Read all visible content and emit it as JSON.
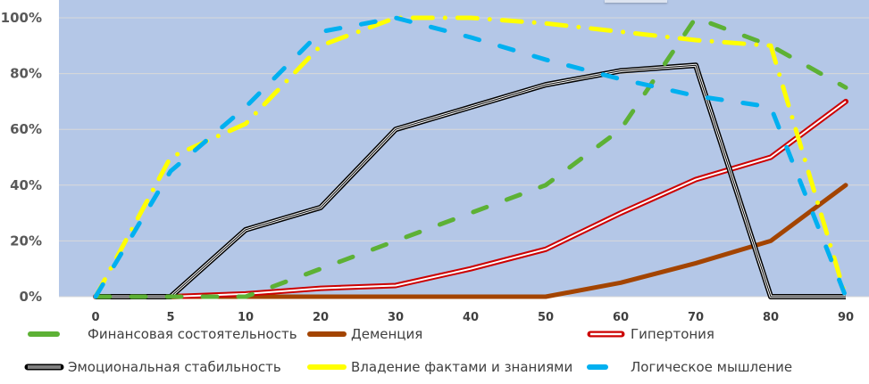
{
  "chart_data": {
    "type": "line",
    "title": "",
    "xlabel": "",
    "ylabel": "",
    "categories": [
      "0",
      "5",
      "10",
      "20",
      "30",
      "40",
      "50",
      "60",
      "70",
      "80",
      "90"
    ],
    "y_ticks": [
      "0%",
      "20%",
      "40%",
      "60%",
      "80%",
      "100%"
    ],
    "ylim": [
      0,
      100
    ],
    "grid": true,
    "legend_position": "bottom",
    "plot_background": "#b4c7e7",
    "series": [
      {
        "name": "Финансовая состоятельность",
        "color": "#5db135",
        "style": "dashed",
        "values": [
          0,
          0,
          0,
          10,
          20,
          30,
          40,
          60,
          100,
          90,
          75
        ]
      },
      {
        "name": "Деменция",
        "color": "#a34400",
        "style": "solid-thick",
        "values": [
          0,
          0,
          0,
          0,
          0,
          0,
          0,
          5,
          12,
          20,
          40
        ]
      },
      {
        "name": "Гипертония",
        "color": "#cc0000",
        "style": "double",
        "values": [
          0,
          0,
          1,
          3,
          4,
          10,
          17,
          30,
          42,
          50,
          70
        ]
      },
      {
        "name": "Эмоциональная стабильность",
        "color": "#000000",
        "style": "triple",
        "values": [
          0,
          0,
          24,
          32,
          60,
          68,
          76,
          81,
          83,
          0,
          0
        ]
      },
      {
        "name": "Владение фактами и знаниями",
        "color": "#ffff00",
        "style": "dash-dot",
        "values": [
          0,
          50,
          62,
          90,
          100,
          100,
          98,
          95,
          92,
          90,
          0
        ]
      },
      {
        "name": "Логическое мышление",
        "color": "#00b0f0",
        "style": "dashed",
        "values": [
          0,
          45,
          68,
          95,
          100,
          93,
          85,
          78,
          72,
          68,
          0
        ]
      }
    ]
  },
  "legend": {
    "items": [
      {
        "label": "Финансовая состоятельность"
      },
      {
        "label": "Деменция"
      },
      {
        "label": "Гипертония"
      },
      {
        "label": "Эмоциональная стабильность"
      },
      {
        "label": "Владение фактами и знаниями"
      },
      {
        "label": "Логическое мышление"
      }
    ]
  }
}
